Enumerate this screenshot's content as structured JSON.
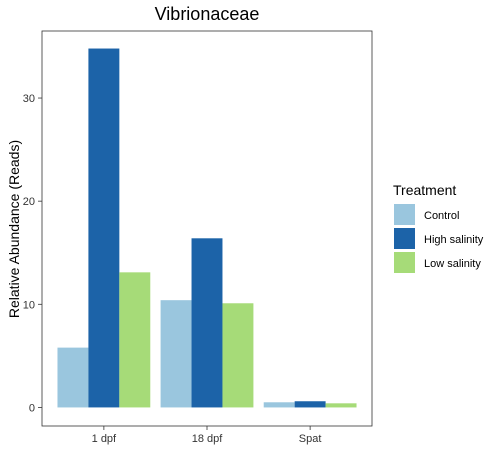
{
  "chart_data": {
    "type": "bar",
    "title": "Vibrionaceae",
    "xlabel": "",
    "ylabel": "Relative Abundance (Reads)",
    "categories": [
      "1 dpf",
      "18 dpf",
      "Spat"
    ],
    "series": [
      {
        "name": "Control",
        "values": [
          5.8,
          10.4,
          0.5
        ],
        "color": "#9ac6de"
      },
      {
        "name": "High salinity",
        "values": [
          34.8,
          16.4,
          0.6
        ],
        "color": "#1c63a8"
      },
      {
        "name": "Low salinity",
        "values": [
          13.1,
          10.1,
          0.4
        ],
        "color": "#a6db78"
      }
    ],
    "y_ticks": [
      0,
      10,
      20,
      30
    ],
    "ylim": [
      -1.8,
      36.5
    ],
    "grid": false,
    "legend": {
      "title": "Treatment",
      "position": "right"
    }
  }
}
